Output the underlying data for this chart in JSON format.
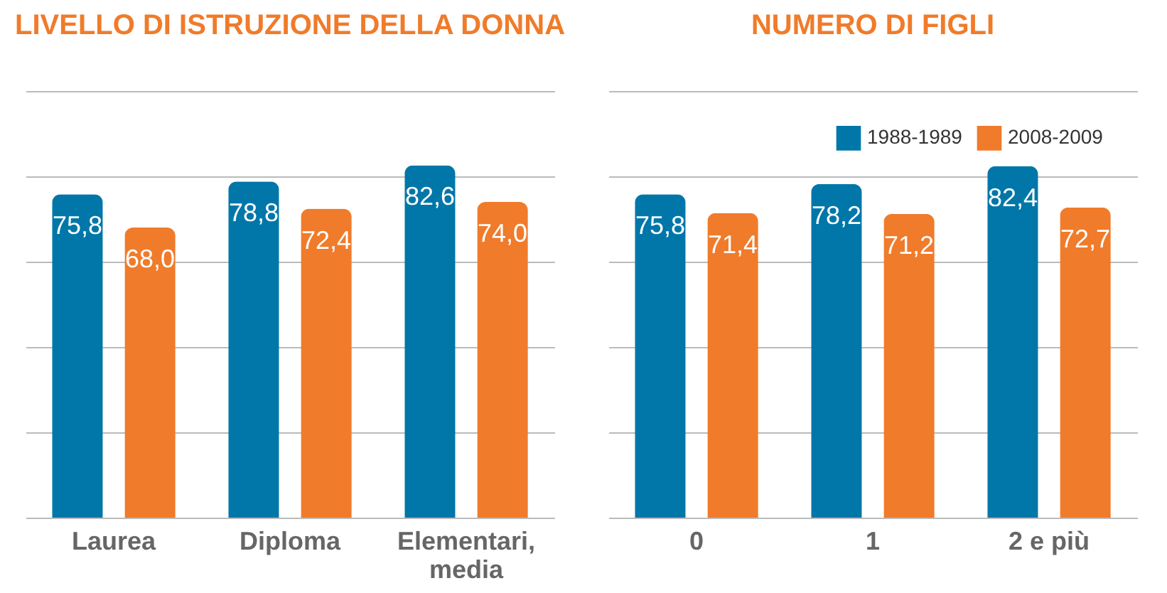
{
  "chart_data": [
    {
      "type": "bar",
      "title": "LIVELLO DI ISTRUZIONE DELLA DONNA",
      "categories": [
        "Laurea",
        "Diploma",
        "Elementari, media"
      ],
      "series": [
        {
          "color": "#0077a8",
          "values": [
            75.8,
            78.8,
            82.6
          ],
          "value_labels": [
            "75,8",
            "78,8",
            "82,6"
          ]
        },
        {
          "color": "#f07b2a",
          "values": [
            68.0,
            72.4,
            74.0
          ],
          "value_labels": [
            "68,0",
            "72,4",
            "74,0"
          ]
        }
      ],
      "grid": "y",
      "tick_labels": "x",
      "legend": false
    },
    {
      "type": "bar",
      "title": "NUMERO DI FIGLI",
      "categories": [
        "0",
        "1",
        "2 e più"
      ],
      "series": [
        {
          "name": "1988-1989",
          "color": "#0077a8",
          "values": [
            75.8,
            78.2,
            82.4
          ],
          "value_labels": [
            "75,8",
            "78,2",
            "82,4"
          ]
        },
        {
          "name": "2008-2009",
          "color": "#f07b2a",
          "values": [
            71.4,
            71.2,
            72.7
          ],
          "value_labels": [
            "71,4",
            "71,2",
            "72,7"
          ]
        }
      ],
      "grid": "y",
      "tick_labels": "x",
      "legend": "top right"
    }
  ]
}
